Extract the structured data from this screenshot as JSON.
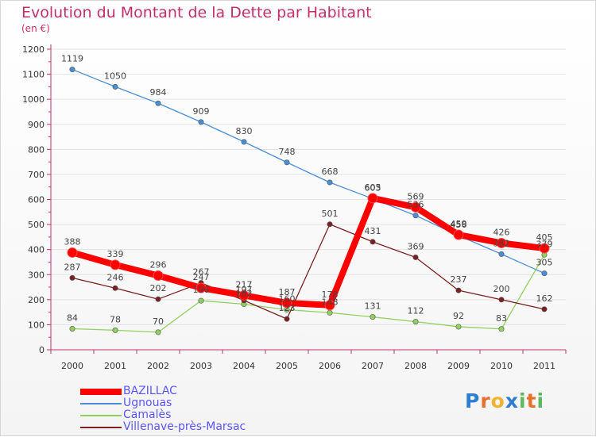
{
  "chart_data": {
    "type": "line",
    "title": "Evolution du Montant de la Dette par Habitant",
    "unit_label": "(en €)",
    "x": [
      "2000",
      "2001",
      "2002",
      "2003",
      "2004",
      "2005",
      "2006",
      "2007",
      "2008",
      "2009",
      "2010",
      "2011"
    ],
    "ylim": [
      0,
      1200
    ],
    "y_ticks": [
      "0",
      "100",
      "200",
      "300",
      "400",
      "500",
      "600",
      "700",
      "800",
      "900",
      "1000",
      "1100",
      "1200"
    ],
    "grid": "horizontal",
    "legend_position": "bottom-left",
    "series": [
      {
        "name": "Ugnouas",
        "color": "#4a8fd6",
        "values": [
          1119,
          1050,
          984,
          909,
          830,
          748,
          668,
          603,
          536,
          456,
          382,
          305
        ],
        "labels": [
          "1119",
          "1050",
          "984",
          "909",
          "830",
          "748",
          "668",
          "603",
          "536",
          "456",
          "382",
          "305"
        ]
      },
      {
        "name": "Camalès",
        "color": "#8fd15e",
        "values": [
          84,
          78,
          70,
          196,
          182,
          160,
          148,
          131,
          112,
          92,
          83,
          379
        ],
        "labels": [
          "84",
          "78",
          "70",
          "196",
          "182",
          "160",
          "148",
          "131",
          "112",
          "92",
          "83",
          "379"
        ]
      },
      {
        "name": "Villenave-près-Marsac",
        "color": "#7a2020",
        "values": [
          287,
          246,
          202,
          267,
          197,
          123,
          501,
          431,
          369,
          237,
          200,
          162
        ],
        "labels": [
          "287",
          "246",
          "202",
          "267",
          "197",
          "123",
          "501",
          "431",
          "369",
          "237",
          "200",
          "162"
        ]
      },
      {
        "name": "BAZILLAC",
        "color": "#ff0000",
        "values": [
          388,
          339,
          296,
          247,
          217,
          187,
          178,
          605,
          569,
          459,
          426,
          405
        ],
        "labels": [
          "388",
          "339",
          "296",
          "247",
          "217",
          "187",
          "178",
          "605",
          "569",
          "459",
          "426",
          "405"
        ]
      }
    ]
  },
  "legend": {
    "items": [
      {
        "label": "BAZILLAC",
        "color": "#ff0000"
      },
      {
        "label": "Ugnouas",
        "color": "#4a8fd6"
      },
      {
        "label": "Camalès",
        "color": "#8fd15e"
      },
      {
        "label": "Villenave-près-Marsac",
        "color": "#7a2020"
      }
    ]
  },
  "brand": {
    "letters": [
      "P",
      "r",
      "o",
      "x",
      "i",
      "t",
      "i"
    ],
    "colors": [
      "#2e7dd1",
      "#e8702a",
      "#f2b234",
      "#2e7dd1",
      "#5cb85c",
      "#e8702a",
      "#5cb85c"
    ]
  }
}
